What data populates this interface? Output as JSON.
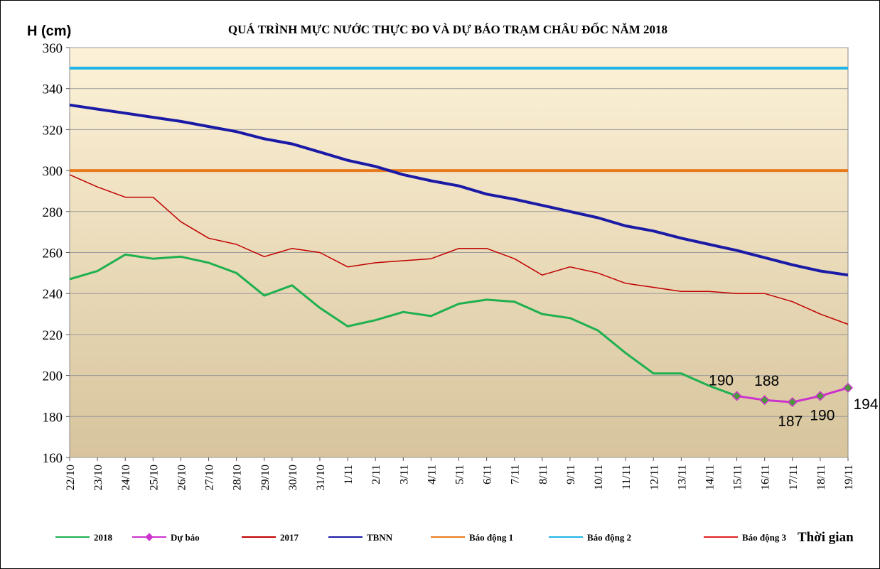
{
  "chart_data": {
    "type": "line",
    "title": "QUÁ TRÌNH MỰC NƯỚC THỰC ĐO VÀ DỰ BÁO TRẠM CHÂU ĐỐC NĂM 2018",
    "y_label": "H (cm)",
    "x_label": "Thời gian",
    "categories": [
      "22/10",
      "23/10",
      "24/10",
      "25/10",
      "26/10",
      "27/10",
      "28/10",
      "29/10",
      "30/10",
      "31/10",
      "1/11",
      "2/11",
      "3/11",
      "4/11",
      "5/11",
      "6/11",
      "7/11",
      "8/11",
      "9/11",
      "10/11",
      "11/11",
      "12/11",
      "13/11",
      "14/11",
      "15/11",
      "16/11",
      "17/11",
      "18/11",
      "19/11"
    ],
    "series": [
      {
        "name": "2018",
        "color": "#1fb04f",
        "values": [
          247,
          251,
          259,
          257,
          258,
          255,
          250,
          239,
          244,
          233,
          224,
          227,
          231,
          229,
          235,
          237,
          236,
          230,
          228,
          222,
          211,
          201,
          201,
          195,
          190,
          null,
          null,
          null,
          null
        ]
      },
      {
        "name": "Dự báo",
        "color": "#cc33cc",
        "markers": true,
        "data_labels": true,
        "values": [
          null,
          null,
          null,
          null,
          null,
          null,
          null,
          null,
          null,
          null,
          null,
          null,
          null,
          null,
          null,
          null,
          null,
          null,
          null,
          null,
          null,
          null,
          null,
          null,
          190,
          188,
          187,
          190,
          194
        ]
      },
      {
        "name": "2017",
        "color": "#c00000",
        "values": [
          298,
          292,
          287,
          287,
          275,
          267,
          264,
          258,
          262,
          260,
          253,
          255,
          256,
          257,
          262,
          262,
          257,
          249,
          253,
          250,
          245,
          243,
          241,
          241,
          240,
          240,
          236,
          230,
          225
        ]
      },
      {
        "name": "TBNN",
        "color": "#1a1aa6",
        "values": [
          332,
          330,
          328,
          326,
          324,
          321.5,
          319,
          315.5,
          313,
          309,
          305,
          302,
          298,
          295,
          292.5,
          288.5,
          286,
          283,
          280,
          277,
          273,
          270.5,
          267,
          264,
          261,
          257.5,
          254,
          251,
          249
        ]
      },
      {
        "name": "Báo động 1",
        "color": "#e87a1e",
        "values": [
          300,
          300,
          300,
          300,
          300,
          300,
          300,
          300,
          300,
          300,
          300,
          300,
          300,
          300,
          300,
          300,
          300,
          300,
          300,
          300,
          300,
          300,
          300,
          300,
          300,
          300,
          300,
          300,
          300
        ]
      },
      {
        "name": "Báo động 2",
        "color": "#1fb4e8",
        "values": [
          350,
          350,
          350,
          350,
          350,
          350,
          350,
          350,
          350,
          350,
          350,
          350,
          350,
          350,
          350,
          350,
          350,
          350,
          350,
          350,
          350,
          350,
          350,
          350,
          350,
          350,
          350,
          350,
          350
        ]
      },
      {
        "name": "Báo động 3",
        "color": "#e02020",
        "values": [
          null,
          null,
          null,
          null,
          null,
          null,
          null,
          null,
          null,
          null,
          null,
          null,
          null,
          null,
          null,
          null,
          null,
          null,
          null,
          null,
          null,
          null,
          null,
          null,
          null,
          null,
          null,
          null,
          null
        ]
      }
    ],
    "ylim": [
      160,
      360
    ],
    "yticks": [
      160,
      180,
      200,
      220,
      240,
      260,
      280,
      300,
      320,
      340,
      360
    ],
    "grid": true
  }
}
